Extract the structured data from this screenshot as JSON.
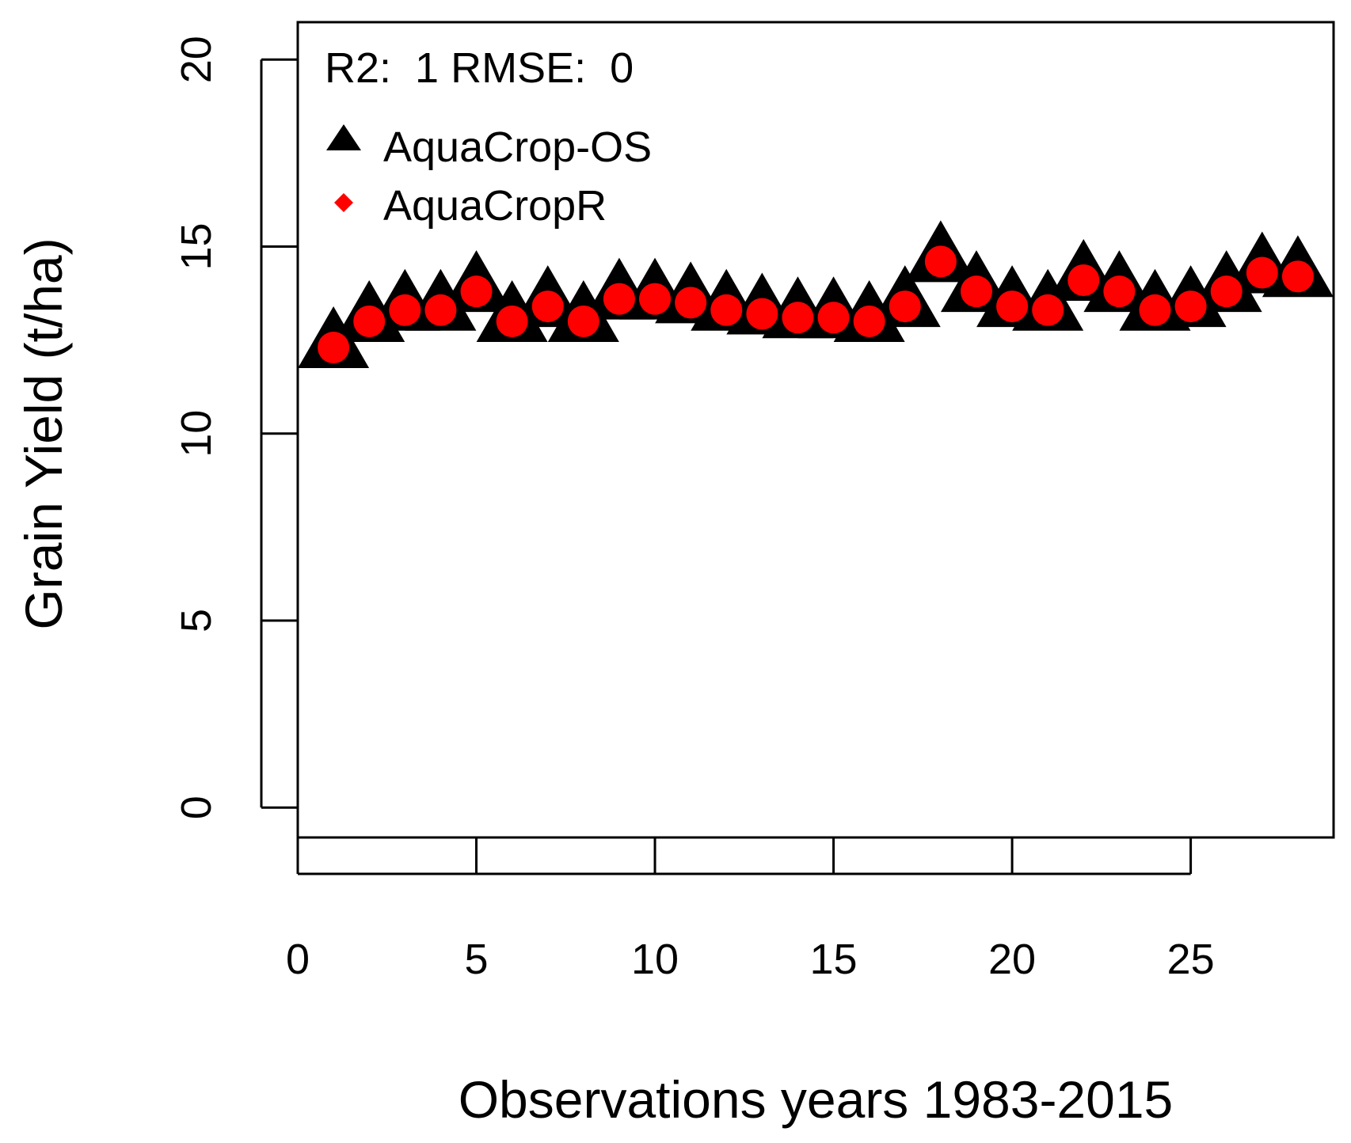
{
  "chart_data": {
    "type": "scatter",
    "title": "",
    "xlabel": "Observations years 1983-2015",
    "ylabel": "Grain Yield (t/ha)",
    "xlim": [
      0,
      29
    ],
    "ylim": [
      -0.8,
      21
    ],
    "x_ticks": [
      0,
      5,
      10,
      15,
      20,
      25
    ],
    "y_ticks": [
      0,
      5,
      10,
      15,
      20
    ],
    "annotation": "R2:  1 RMSE:  0",
    "legend_position": "top-left",
    "x": [
      1,
      2,
      3,
      4,
      5,
      6,
      7,
      8,
      9,
      10,
      11,
      12,
      13,
      14,
      15,
      16,
      17,
      18,
      19,
      20,
      21,
      22,
      23,
      24,
      25,
      26,
      27,
      28
    ],
    "series": [
      {
        "name": "AquaCrop-OS",
        "marker": "triangle",
        "color": "#000000",
        "values": [
          12.3,
          13.0,
          13.3,
          13.3,
          13.8,
          13.0,
          13.4,
          13.0,
          13.6,
          13.6,
          13.5,
          13.3,
          13.2,
          13.1,
          13.1,
          13.0,
          13.4,
          14.6,
          13.8,
          13.4,
          13.3,
          14.1,
          13.8,
          13.3,
          13.4,
          13.8,
          14.3,
          14.2
        ]
      },
      {
        "name": "AquaCropR",
        "marker": "diamond",
        "color": "#ff0000",
        "values": [
          12.3,
          13.0,
          13.3,
          13.3,
          13.8,
          13.0,
          13.4,
          13.0,
          13.6,
          13.6,
          13.5,
          13.3,
          13.2,
          13.1,
          13.1,
          13.0,
          13.4,
          14.6,
          13.8,
          13.4,
          13.3,
          14.1,
          13.8,
          13.3,
          13.4,
          13.8,
          14.3,
          14.2
        ]
      }
    ]
  }
}
